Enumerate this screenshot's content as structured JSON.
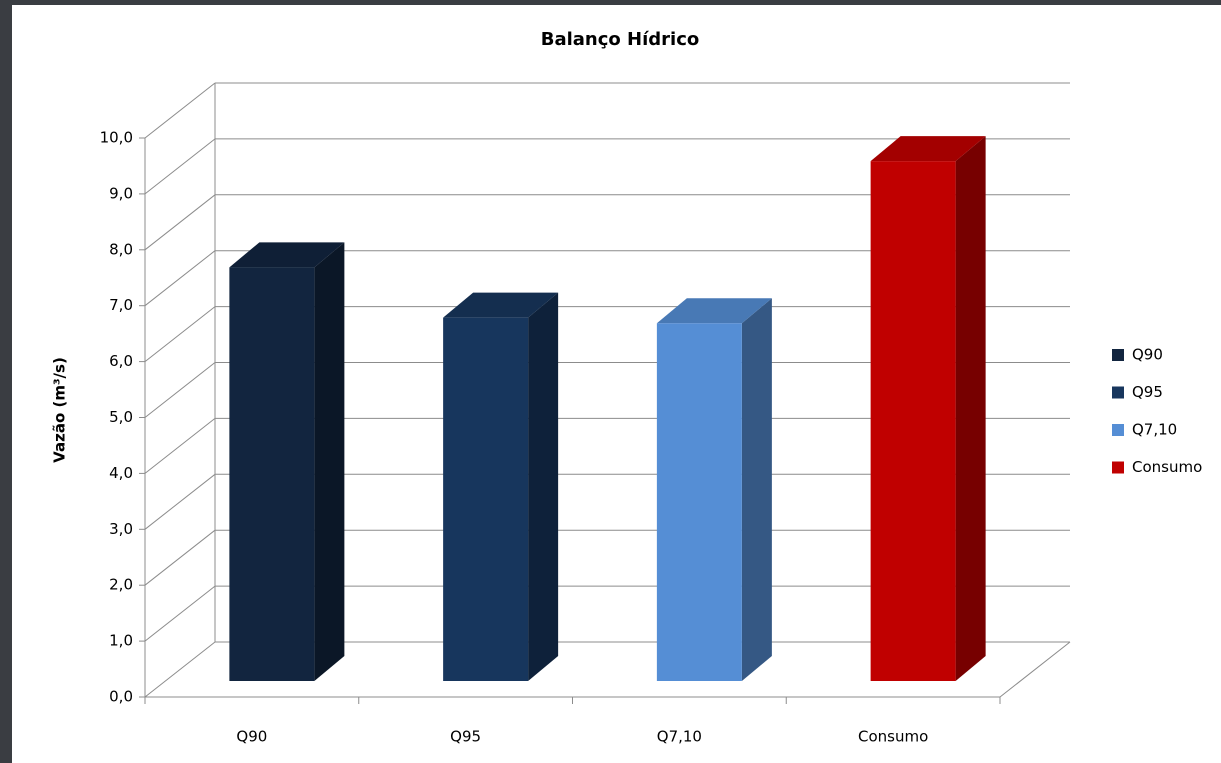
{
  "chart_data": {
    "type": "bar3d",
    "title": "Balanço Hídrico",
    "ylabel": "Vazão (m³/s)",
    "categories": [
      "Q90",
      "Q95",
      "Q7,10",
      "Consumo"
    ],
    "values": [
      7.4,
      6.5,
      6.4,
      9.3
    ],
    "colors": [
      "#12253f",
      "#17365d",
      "#558ed5",
      "#c00000"
    ],
    "ylim": [
      0,
      10
    ],
    "yticks": [
      {
        "value": 0,
        "label": "0,0"
      },
      {
        "value": 1,
        "label": "1,0"
      },
      {
        "value": 2,
        "label": "2,0"
      },
      {
        "value": 3,
        "label": "3,0"
      },
      {
        "value": 4,
        "label": "4,0"
      },
      {
        "value": 5,
        "label": "5,0"
      },
      {
        "value": 6,
        "label": "6,0"
      },
      {
        "value": 7,
        "label": "7,0"
      },
      {
        "value": 8,
        "label": "8,0"
      },
      {
        "value": 9,
        "label": "9,0"
      },
      {
        "value": 10,
        "label": "10,0"
      }
    ],
    "grid": true,
    "legend": "right"
  }
}
